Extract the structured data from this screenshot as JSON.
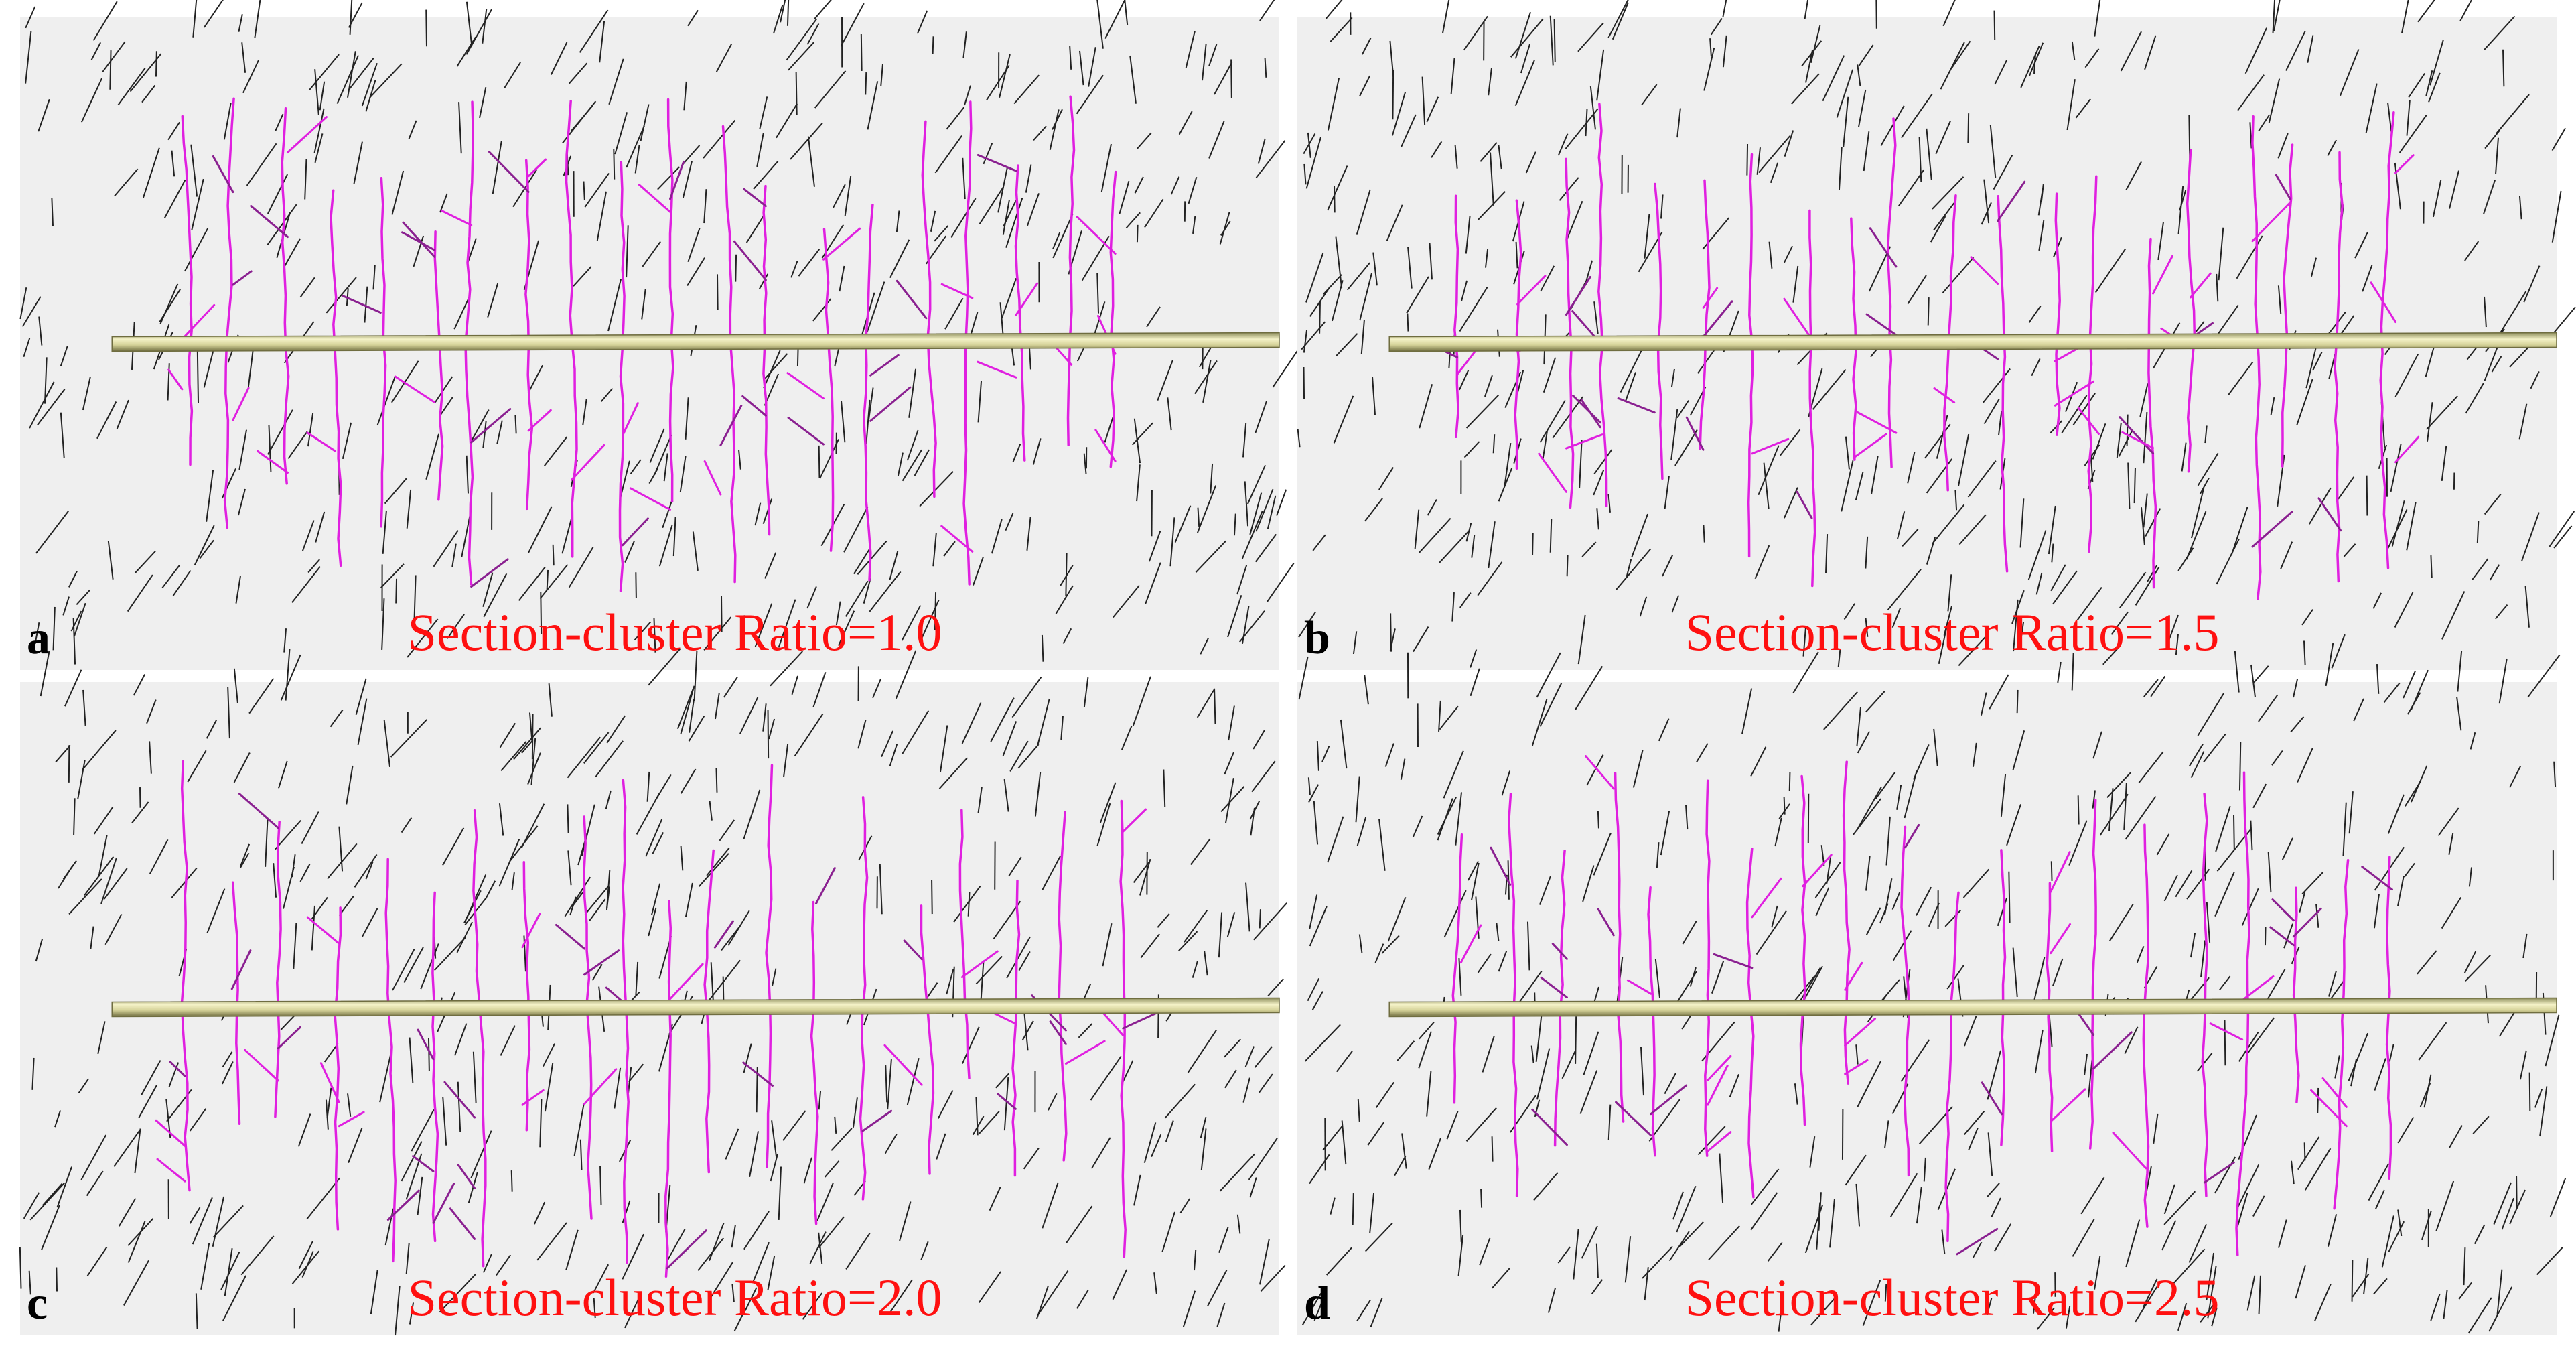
{
  "panels": [
    {
      "label": "a",
      "caption": "Section-cluster Ratio=1.0"
    },
    {
      "label": "b",
      "caption": "Section-cluster Ratio=1.5"
    },
    {
      "label": "c",
      "caption": "Section-cluster Ratio=2.0"
    },
    {
      "label": "d",
      "caption": "Section-cluster Ratio=2.5"
    }
  ]
}
